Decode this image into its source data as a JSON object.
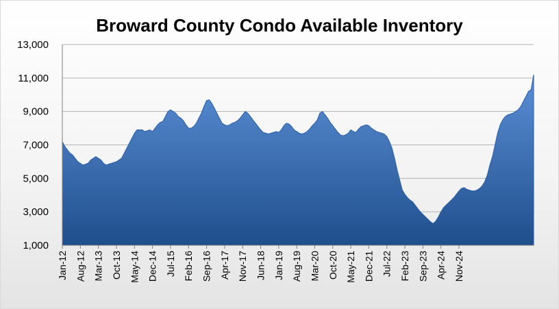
{
  "chart_data": {
    "type": "area",
    "title": "Broward County Condo Available Inventory",
    "xlabel": "",
    "ylabel": "",
    "ylim": [
      1000,
      13000
    ],
    "yticks": [
      1000,
      3000,
      5000,
      7000,
      9000,
      11000,
      13000
    ],
    "ytick_labels": [
      "1,000",
      "3,000",
      "5,000",
      "7,000",
      "9,000",
      "11,000",
      "13,000"
    ],
    "xtick_labels": [
      "Jan-12",
      "Aug-12",
      "Mar-13",
      "Oct-13",
      "May-14",
      "Dec-14",
      "Jul-15",
      "Feb-16",
      "Sep-16",
      "Apr-17",
      "Nov-17",
      "Jun-18",
      "Jan-19",
      "Aug-19",
      "Mar-20",
      "Oct-20",
      "May-21",
      "Dec-21",
      "Jul-22",
      "Feb-23",
      "Sep-23",
      "Apr-24",
      "Nov-24"
    ],
    "grid": true,
    "legend": "none",
    "colors": {
      "fill_top": "#5b8fd6",
      "fill_bottom": "#1f4e8c",
      "edge": "#2a5ea8",
      "grid": "#b3b3b3"
    },
    "series": [
      {
        "values": [
          7200,
          6900,
          6700,
          6500,
          6400,
          6200,
          6000,
          5900,
          5800,
          5850,
          5900,
          6100,
          6200,
          6300,
          6200,
          6100,
          5900,
          5800,
          5850,
          5900,
          5950,
          6000,
          6100,
          6200,
          6500,
          6800,
          7100,
          7400,
          7700,
          7900,
          7900,
          7900,
          7800,
          7850,
          7900,
          7800,
          8000,
          8200,
          8350,
          8400,
          8700,
          9000,
          9100,
          9000,
          8900,
          8700,
          8600,
          8450,
          8200,
          8000,
          8000,
          8100,
          8300,
          8600,
          8900,
          9300,
          9650,
          9700,
          9500,
          9200,
          8900,
          8600,
          8300,
          8200,
          8150,
          8200,
          8300,
          8350,
          8450,
          8600,
          8800,
          9000,
          8900,
          8700,
          8500,
          8300,
          8100,
          7900,
          7750,
          7700,
          7650,
          7700,
          7750,
          7800,
          7750,
          7900,
          8150,
          8300,
          8250,
          8100,
          7900,
          7800,
          7700,
          7650,
          7700,
          7800,
          7950,
          8150,
          8300,
          8500,
          8900,
          9000,
          8800,
          8600,
          8350,
          8150,
          7950,
          7750,
          7600,
          7550,
          7600,
          7700,
          7900,
          7800,
          7750,
          7950,
          8100,
          8150,
          8200,
          8150,
          8000,
          7900,
          7800,
          7750,
          7700,
          7650,
          7500,
          7200,
          6800,
          6200,
          5500,
          4900,
          4300,
          4050,
          3850,
          3700,
          3600,
          3400,
          3200,
          3000,
          2850,
          2700,
          2550,
          2400,
          2300,
          2450,
          2700,
          3000,
          3250,
          3400,
          3550,
          3700,
          3850,
          4050,
          4250,
          4400,
          4450,
          4350,
          4300,
          4250,
          4250,
          4300,
          4400,
          4550,
          4800,
          5200,
          5800,
          6300,
          7000,
          7700,
          8200,
          8500,
          8700,
          8800,
          8850,
          8900,
          9000,
          9100,
          9300,
          9600,
          9900,
          10200,
          10300,
          11200
        ]
      }
    ]
  }
}
